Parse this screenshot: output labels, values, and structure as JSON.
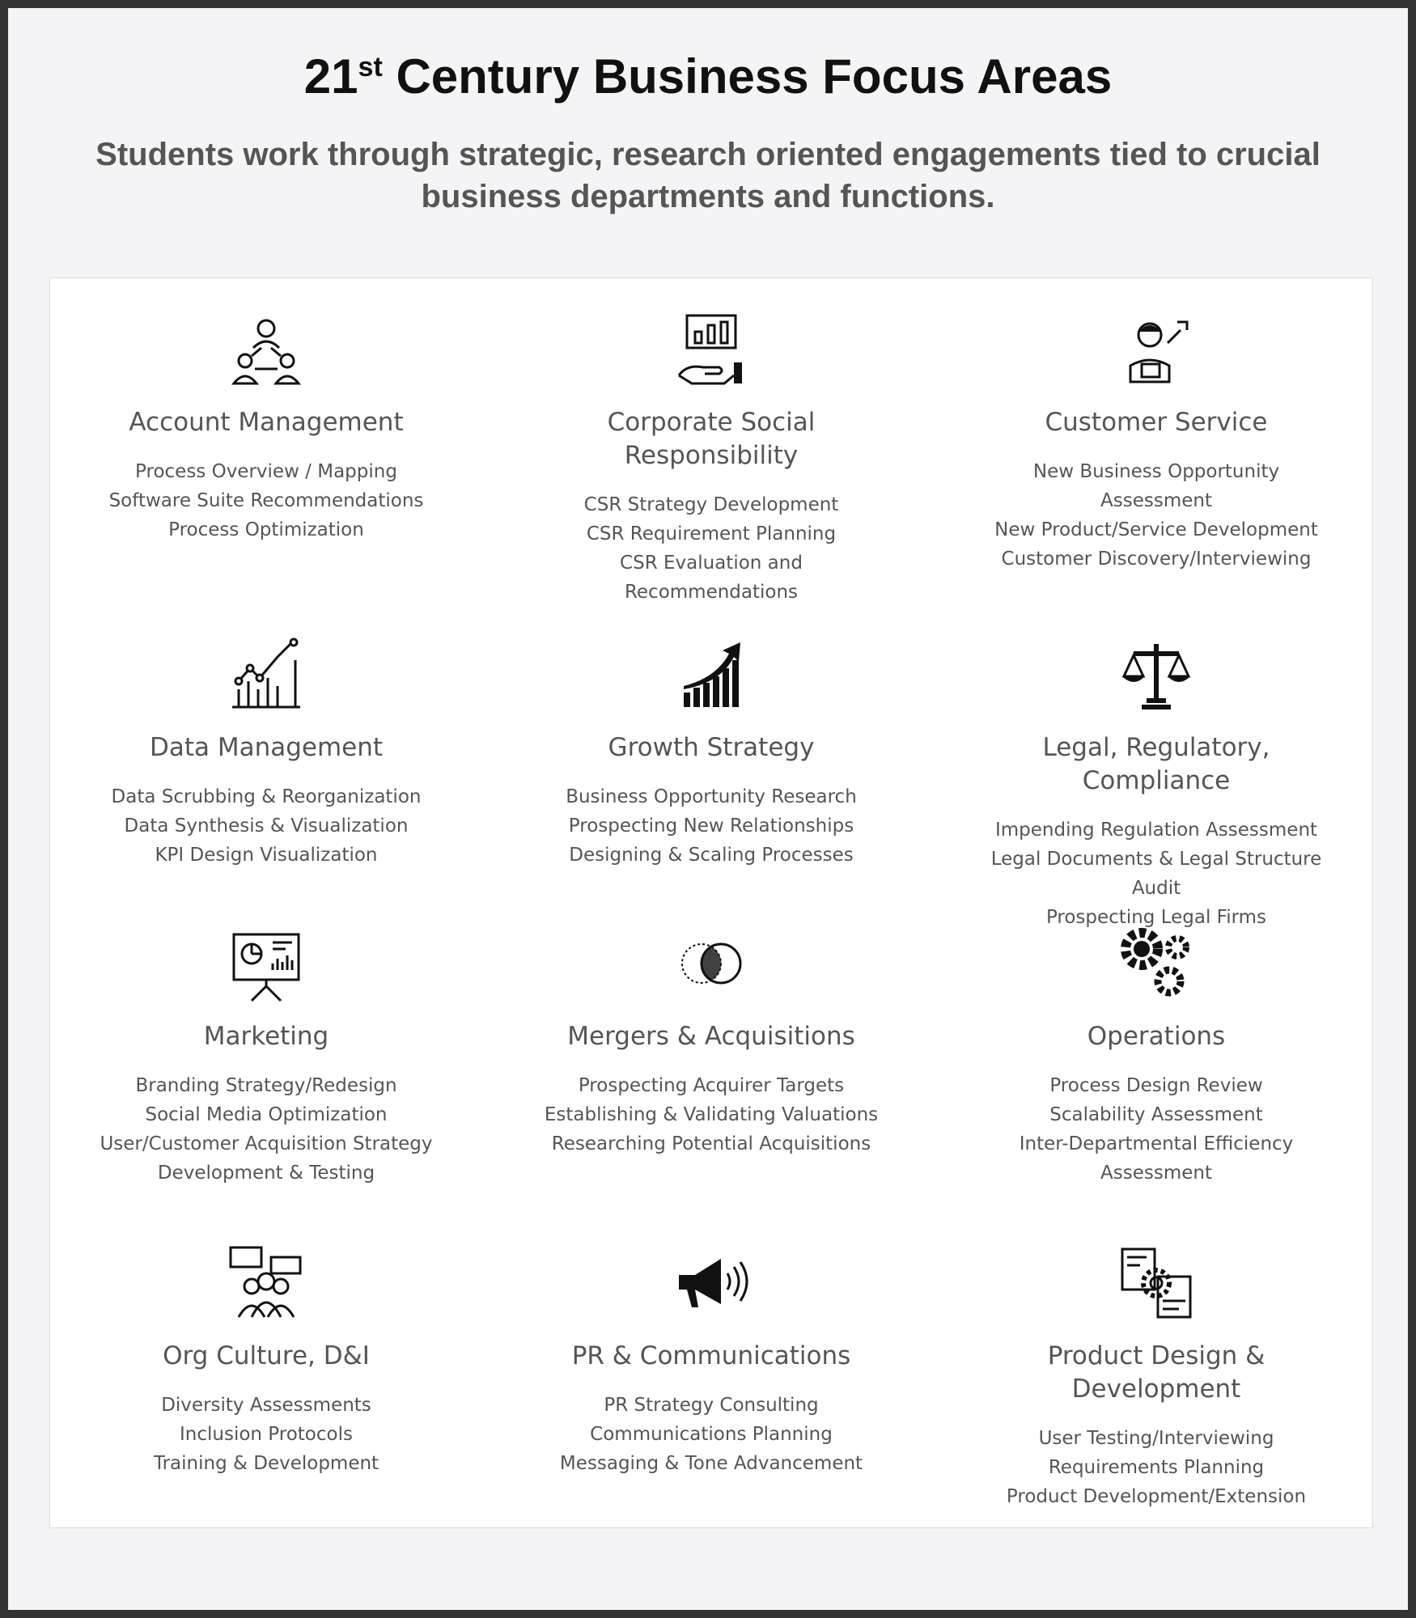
{
  "header": {
    "title": "21",
    "title_sup": "st",
    "title_rest": " Century Business Focus Areas",
    "subtitle": "Students work through strategic, research oriented engagements tied to crucial business departments and functions."
  },
  "areas": [
    {
      "icon": "team-network-icon",
      "title": "Account Management",
      "items": [
        "Process Overview / Mapping",
        "Software Suite Recommendations",
        "Process Optimization"
      ]
    },
    {
      "icon": "hand-chart-icon",
      "title": "Corporate Social Responsibility",
      "items": [
        "CSR Strategy Development",
        "CSR Requirement Planning",
        "CSR Evaluation and Recommendations"
      ]
    },
    {
      "icon": "support-engineer-icon",
      "title": "Customer Service",
      "items": [
        "New Business Opportunity Assessment",
        "New Product/Service Development",
        "Customer Discovery/Interviewing"
      ]
    },
    {
      "icon": "line-chart-icon",
      "title": "Data Management",
      "items": [
        "Data Scrubbing & Reorganization",
        "Data Synthesis & Visualization",
        "KPI Design Visualization"
      ]
    },
    {
      "icon": "growth-arrow-icon",
      "title": "Growth Strategy",
      "items": [
        "Business Opportunity Research",
        "Prospecting New Relationships",
        "Designing & Scaling Processes"
      ]
    },
    {
      "icon": "scales-icon",
      "title": "Legal, Regulatory, Compliance",
      "items": [
        "Impending Regulation Assessment",
        "Legal Documents & Legal Structure Audit",
        "Prospecting Legal Firms"
      ]
    },
    {
      "icon": "presentation-board-icon",
      "title": "Marketing",
      "items": [
        "Branding Strategy/Redesign",
        "Social Media Optimization",
        "User/Customer Acquisition Strategy",
        "Development & Testing"
      ]
    },
    {
      "icon": "venn-circles-icon",
      "title": "Mergers & Acquisitions",
      "items": [
        "Prospecting Acquirer Targets",
        "Establishing & Validating Valuations",
        "Researching Potential Acquisitions"
      ]
    },
    {
      "icon": "gears-icon",
      "title": "Operations",
      "items": [
        "Process Design Review",
        "Scalability Assessment",
        "Inter-Departmental Efficiency Assessment"
      ]
    },
    {
      "icon": "people-chat-icon",
      "title": "Org Culture, D&I",
      "items": [
        "Diversity Assessments",
        "Inclusion Protocols",
        "Training & Development"
      ]
    },
    {
      "icon": "megaphone-icon",
      "title": "PR & Communications",
      "items": [
        "PR Strategy Consulting",
        "Communications Planning",
        "Messaging & Tone Advancement"
      ]
    },
    {
      "icon": "product-gear-icon",
      "title": "Product Design & Development",
      "items": [
        "User Testing/Interviewing",
        "Requirements Planning",
        "Product Development/Extension"
      ]
    }
  ]
}
